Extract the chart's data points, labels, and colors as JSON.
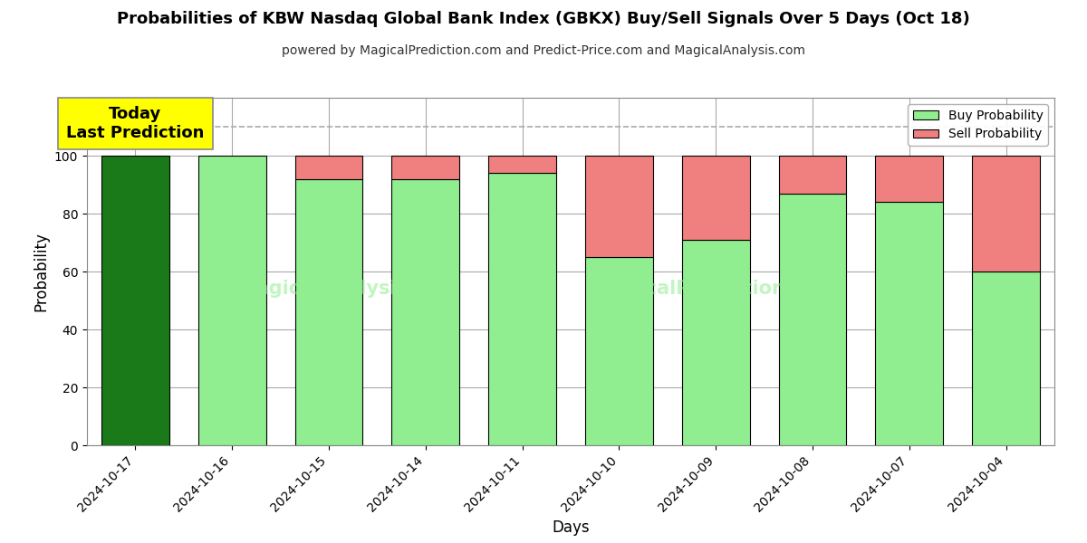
{
  "title": "Probabilities of KBW Nasdaq Global Bank Index (GBKX) Buy/Sell Signals Over 5 Days (Oct 18)",
  "subtitle": "powered by MagicalPrediction.com and Predict-Price.com and MagicalAnalysis.com",
  "xlabel": "Days",
  "ylabel": "Probability",
  "dates": [
    "2024-10-17",
    "2024-10-16",
    "2024-10-15",
    "2024-10-14",
    "2024-10-11",
    "2024-10-10",
    "2024-10-09",
    "2024-10-08",
    "2024-10-07",
    "2024-10-04"
  ],
  "buy_probs": [
    100,
    100,
    92,
    92,
    94,
    65,
    71,
    87,
    84,
    60
  ],
  "sell_probs": [
    0,
    0,
    8,
    8,
    6,
    35,
    29,
    13,
    16,
    40
  ],
  "buy_color_today": "#1a7a1a",
  "buy_color": "#90EE90",
  "sell_color": "#F08080",
  "bar_edgecolor": "#000000",
  "grid_color": "#aaaaaa",
  "dashed_line_y": 110,
  "ylim": [
    0,
    120
  ],
  "yticks": [
    0,
    20,
    40,
    60,
    80,
    100
  ],
  "annotation_text": "Today\nLast Prediction",
  "annotation_bg": "#ffff00",
  "legend_buy_label": "Buy Probability",
  "legend_sell_label": "Sell Probability",
  "figsize": [
    12,
    6
  ],
  "dpi": 100
}
